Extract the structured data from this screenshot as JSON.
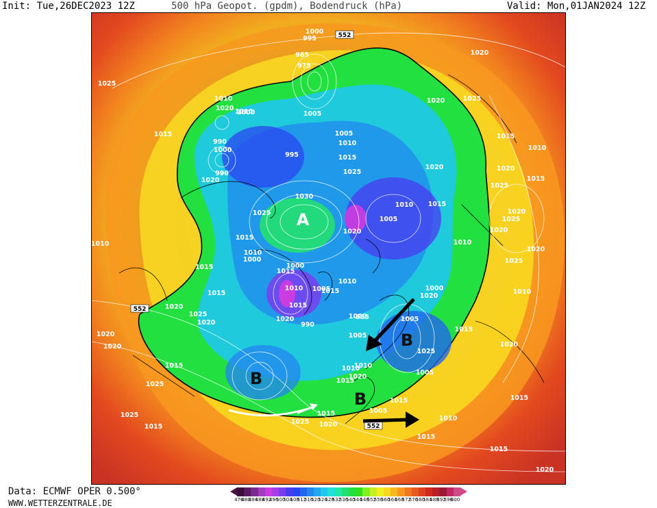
{
  "header": {
    "init": "Init: Tue,26DEC2023 12Z",
    "title": "500 hPa Geopot. (gpdm), Bodendruck (hPa)",
    "valid": "Valid: Mon,01JAN2024 12Z"
  },
  "footer": {
    "data_source": "Data: ECMWF OPER 0.500°",
    "website": "WWW.WETTERZENTRALE.DE"
  },
  "legend": {
    "values": [
      "476",
      "480",
      "484",
      "488",
      "492",
      "496",
      "500",
      "504",
      "508",
      "512",
      "516",
      "520",
      "524",
      "528",
      "532",
      "536",
      "540",
      "544",
      "548",
      "552",
      "556",
      "560",
      "564",
      "568",
      "572",
      "576",
      "580",
      "584",
      "588",
      "592",
      "596",
      "600"
    ],
    "colors": [
      "#3c0d3a",
      "#5a1a63",
      "#7a2a8e",
      "#a43cc0",
      "#c83ce0",
      "#a53ee8",
      "#7a3ef0",
      "#4a3af0",
      "#2a46f0",
      "#2266ee",
      "#2288ee",
      "#22a8f0",
      "#20c8ee",
      "#20e0d8",
      "#20e8a8",
      "#22e070",
      "#22e040",
      "#30e020",
      "#80f020",
      "#c8f020",
      "#f0f020",
      "#f8d820",
      "#f8b820",
      "#f89820",
      "#f07820",
      "#e85c20",
      "#e04020",
      "#d02a20",
      "#b81e26",
      "#a01838",
      "#c02a60",
      "#d04a8a"
    ]
  },
  "map": {
    "highs": [
      "A"
    ],
    "lows": [
      "B",
      "B",
      "B"
    ],
    "contour_552_labels": [
      "552",
      "552",
      "552"
    ],
    "pressure_labels": [
      "1000",
      "995",
      "985",
      "975",
      "1010",
      "1020",
      "1025",
      "1020",
      "1025",
      "1020",
      "1015",
      "1010",
      "1000",
      "1005",
      "990",
      "1000",
      "990",
      "995",
      "1005",
      "1010",
      "1015",
      "1025",
      "1020",
      "1015",
      "1010",
      "1015",
      "1030",
      "1020",
      "1025",
      "1020",
      "1025",
      "1010",
      "1015",
      "1025",
      "1020",
      "1015",
      "1010",
      "1005",
      "1000",
      "1015",
      "1010",
      "1015",
      "1005",
      "1010",
      "1015",
      "1020",
      "1025",
      "1010",
      "1015",
      "1020",
      "1000",
      "990",
      "995",
      "1000",
      "1005",
      "1010",
      "1015",
      "1020",
      "1010",
      "1005",
      "1015",
      "1020",
      "1025",
      "1020",
      "1015",
      "1020",
      "1025",
      "1015",
      "1010",
      "1020",
      "1015",
      "1025",
      "1020",
      "1025",
      "1020",
      "1015",
      "1020",
      "1015",
      "1010",
      "1005",
      "1000",
      "1005",
      "1015",
      "1015",
      "1020",
      "1020",
      "1010",
      "1015",
      "1020",
      "1025"
    ]
  }
}
